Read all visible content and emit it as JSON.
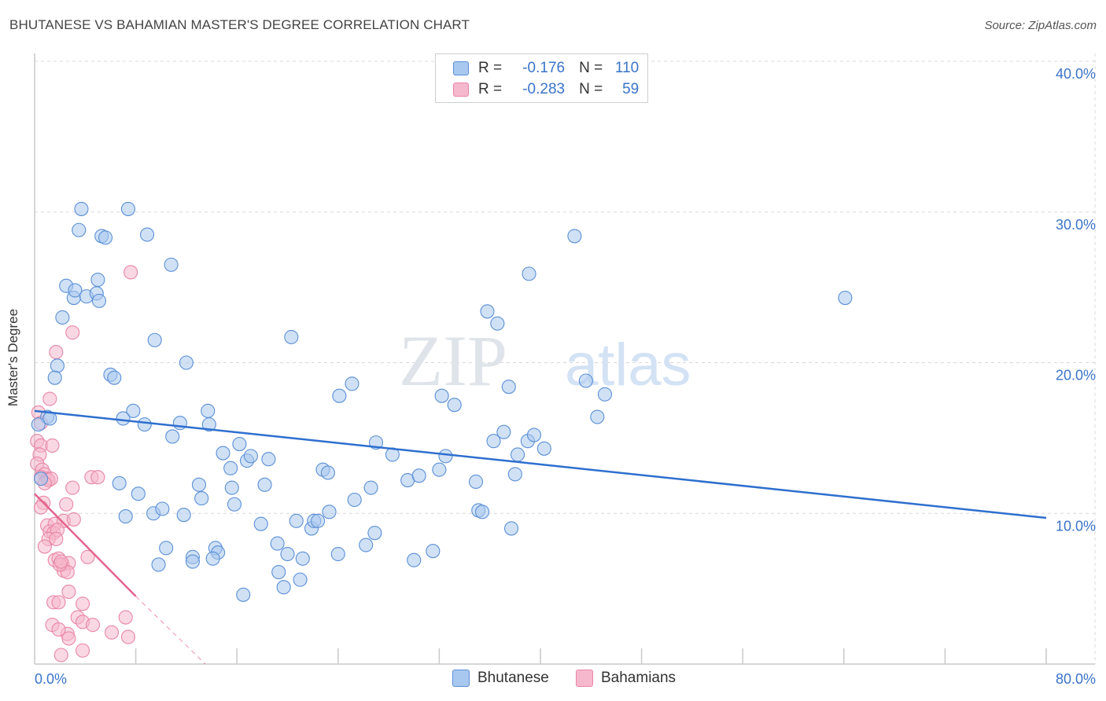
{
  "title": "BHUTANESE VS BAHAMIAN MASTER'S DEGREE CORRELATION CHART",
  "source": "Source: ZipAtlas.com",
  "watermark": {
    "zip": "ZIP",
    "atlas": "atlas"
  },
  "colors": {
    "blue_fill": "#a9c8ef",
    "blue_stroke": "#5b8fd6",
    "blue_line": "#2e6fce",
    "pink_fill": "#f6b8cc",
    "pink_stroke": "#e886a6",
    "pink_line": "#e2648c",
    "axis_text": "#3a74c9",
    "grid": "#d8d8d8"
  },
  "stats": {
    "blue": {
      "r_label": "R =",
      "r_value": "-0.176",
      "n_label": "N =",
      "n_value": "110"
    },
    "pink": {
      "r_label": "R =",
      "r_value": "-0.283",
      "n_label": "N =",
      "n_value": "59"
    }
  },
  "legend": {
    "blue": "Bhutanese",
    "pink": "Bahamians"
  },
  "chart_data": {
    "type": "scatter",
    "title": "BHUTANESE VS BAHAMIAN MASTER'S DEGREE CORRELATION CHART",
    "xlabel": "",
    "ylabel": "Master's Degree",
    "xlim": [
      0,
      80
    ],
    "ylim": [
      0,
      40
    ],
    "x_tick_labels": [
      "0.0%",
      "80.0%"
    ],
    "y_ticks": [
      10,
      20,
      30,
      40
    ],
    "y_tick_labels": [
      "10.0%",
      "20.0%",
      "30.0%",
      "40.0%"
    ],
    "grid": true,
    "series": [
      {
        "name": "Bhutanese",
        "color": "#a9c8ef",
        "trend": {
          "x": [
            0,
            80
          ],
          "y": [
            16.8,
            9.7
          ]
        },
        "points": [
          [
            1.0,
            16.4
          ],
          [
            1.2,
            16.3
          ],
          [
            0.3,
            15.9
          ],
          [
            0.5,
            12.3
          ],
          [
            3.7,
            30.2
          ],
          [
            7.4,
            30.2
          ],
          [
            3.5,
            28.8
          ],
          [
            5.3,
            28.4
          ],
          [
            5.6,
            28.3
          ],
          [
            8.9,
            28.5
          ],
          [
            10.8,
            26.5
          ],
          [
            2.5,
            25.1
          ],
          [
            3.1,
            24.3
          ],
          [
            3.2,
            24.8
          ],
          [
            4.1,
            24.4
          ],
          [
            4.9,
            24.6
          ],
          [
            5.1,
            24.1
          ],
          [
            5.0,
            25.5
          ],
          [
            2.2,
            23.0
          ],
          [
            9.5,
            21.5
          ],
          [
            1.8,
            19.8
          ],
          [
            1.6,
            19.0
          ],
          [
            6.0,
            19.2
          ],
          [
            6.3,
            19.0
          ],
          [
            12.0,
            20.0
          ],
          [
            7.8,
            16.8
          ],
          [
            7.0,
            16.3
          ],
          [
            8.7,
            15.9
          ],
          [
            11.5,
            16.0
          ],
          [
            13.7,
            16.8
          ],
          [
            13.8,
            15.9
          ],
          [
            10.9,
            15.1
          ],
          [
            6.7,
            12.0
          ],
          [
            8.2,
            11.3
          ],
          [
            7.2,
            9.8
          ],
          [
            9.4,
            10.0
          ],
          [
            10.1,
            10.3
          ],
          [
            11.8,
            9.9
          ],
          [
            13.0,
            11.9
          ],
          [
            13.2,
            11.0
          ],
          [
            14.9,
            14.0
          ],
          [
            15.5,
            13.0
          ],
          [
            16.2,
            14.6
          ],
          [
            16.8,
            13.5
          ],
          [
            17.1,
            13.8
          ],
          [
            18.5,
            13.6
          ],
          [
            18.2,
            11.9
          ],
          [
            15.6,
            11.7
          ],
          [
            15.8,
            10.6
          ],
          [
            10.4,
            7.7
          ],
          [
            9.8,
            6.6
          ],
          [
            12.5,
            7.1
          ],
          [
            12.5,
            6.8
          ],
          [
            14.3,
            7.7
          ],
          [
            14.5,
            7.4
          ],
          [
            14.1,
            7.0
          ],
          [
            16.5,
            4.6
          ],
          [
            17.9,
            9.3
          ],
          [
            19.2,
            8.0
          ],
          [
            19.3,
            6.1
          ],
          [
            20.0,
            7.3
          ],
          [
            19.7,
            5.1
          ],
          [
            21.0,
            5.6
          ],
          [
            20.7,
            9.5
          ],
          [
            21.2,
            7.0
          ],
          [
            21.9,
            9.0
          ],
          [
            22.1,
            9.5
          ],
          [
            22.4,
            9.5
          ],
          [
            22.8,
            12.9
          ],
          [
            23.2,
            12.7
          ],
          [
            23.3,
            10.1
          ],
          [
            24.0,
            7.3
          ],
          [
            25.3,
            10.9
          ],
          [
            26.2,
            7.9
          ],
          [
            26.9,
            8.7
          ],
          [
            25.1,
            18.6
          ],
          [
            24.1,
            17.8
          ],
          [
            20.3,
            21.7
          ],
          [
            26.6,
            11.7
          ],
          [
            28.3,
            13.9
          ],
          [
            29.5,
            12.2
          ],
          [
            30.0,
            6.9
          ],
          [
            27.0,
            14.7
          ],
          [
            30.4,
            12.5
          ],
          [
            31.5,
            7.5
          ],
          [
            32.0,
            12.9
          ],
          [
            32.5,
            13.8
          ],
          [
            35.1,
            10.2
          ],
          [
            35.4,
            10.1
          ],
          [
            34.9,
            12.1
          ],
          [
            35.8,
            23.4
          ],
          [
            36.6,
            22.6
          ],
          [
            32.2,
            17.8
          ],
          [
            33.2,
            17.2
          ],
          [
            36.3,
            14.8
          ],
          [
            37.1,
            15.4
          ],
          [
            37.5,
            18.4
          ],
          [
            37.7,
            9.0
          ],
          [
            38.0,
            12.6
          ],
          [
            38.2,
            13.9
          ],
          [
            39.0,
            14.8
          ],
          [
            39.5,
            15.2
          ],
          [
            40.3,
            14.3
          ],
          [
            39.1,
            25.9
          ],
          [
            42.7,
            28.4
          ],
          [
            43.6,
            18.8
          ],
          [
            44.5,
            16.4
          ],
          [
            45.1,
            17.9
          ],
          [
            64.1,
            24.3
          ]
        ]
      },
      {
        "name": "Bahamians",
        "color": "#f6b8cc",
        "trend": {
          "x": [
            0,
            8
          ],
          "y": [
            11.3,
            4.5
          ],
          "dashed_to": {
            "x": 13.5,
            "y": 0
          }
        },
        "points": [
          [
            7.6,
            26.0
          ],
          [
            3.0,
            22.0
          ],
          [
            1.7,
            20.7
          ],
          [
            1.2,
            17.6
          ],
          [
            0.3,
            16.7
          ],
          [
            0.5,
            16.0
          ],
          [
            0.2,
            14.8
          ],
          [
            0.5,
            14.5
          ],
          [
            1.4,
            14.5
          ],
          [
            0.4,
            13.9
          ],
          [
            0.2,
            13.3
          ],
          [
            0.6,
            12.9
          ],
          [
            0.8,
            12.6
          ],
          [
            0.5,
            12.4
          ],
          [
            1.0,
            12.3
          ],
          [
            1.1,
            12.2
          ],
          [
            1.3,
            12.3
          ],
          [
            0.8,
            12.0
          ],
          [
            4.5,
            12.4
          ],
          [
            5.0,
            12.4
          ],
          [
            3.0,
            11.7
          ],
          [
            0.7,
            10.7
          ],
          [
            2.5,
            10.6
          ],
          [
            0.5,
            10.4
          ],
          [
            1.0,
            9.2
          ],
          [
            1.6,
            9.3
          ],
          [
            2.3,
            9.5
          ],
          [
            3.1,
            9.6
          ],
          [
            1.2,
            8.8
          ],
          [
            1.5,
            8.7
          ],
          [
            1.8,
            8.9
          ],
          [
            1.1,
            8.3
          ],
          [
            1.7,
            8.3
          ],
          [
            0.8,
            7.8
          ],
          [
            4.2,
            7.1
          ],
          [
            1.6,
            6.9
          ],
          [
            1.9,
            7.0
          ],
          [
            2.2,
            6.6
          ],
          [
            2.7,
            6.7
          ],
          [
            2.3,
            6.2
          ],
          [
            2.6,
            6.1
          ],
          [
            2.0,
            6.6
          ],
          [
            2.1,
            6.8
          ],
          [
            2.7,
            4.8
          ],
          [
            1.5,
            4.1
          ],
          [
            1.9,
            4.1
          ],
          [
            3.8,
            4.0
          ],
          [
            7.2,
            3.1
          ],
          [
            3.4,
            3.1
          ],
          [
            3.8,
            2.8
          ],
          [
            4.6,
            2.6
          ],
          [
            1.4,
            2.6
          ],
          [
            2.6,
            2.0
          ],
          [
            2.7,
            1.7
          ],
          [
            6.1,
            2.1
          ],
          [
            7.4,
            1.8
          ],
          [
            3.8,
            0.9
          ],
          [
            2.1,
            0.6
          ],
          [
            1.9,
            2.3
          ]
        ]
      }
    ]
  }
}
